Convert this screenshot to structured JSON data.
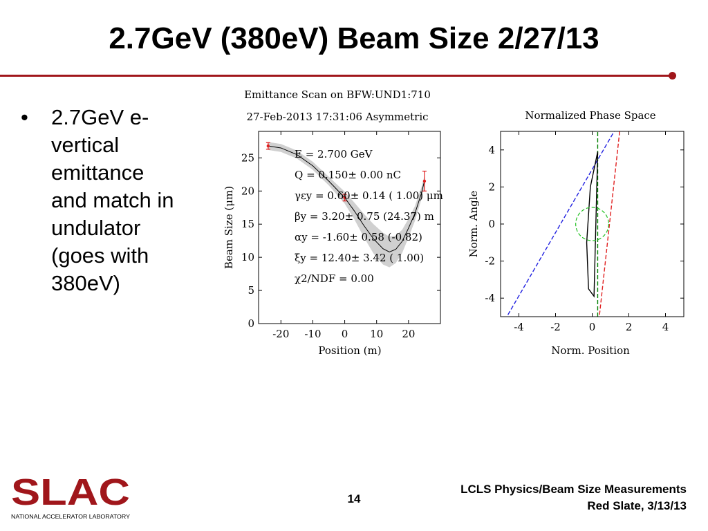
{
  "slide": {
    "title": "2.7GeV (380eV) Beam Size 2/27/13",
    "bullet_marker": "•",
    "bullet": "2.7GeV e-\nvertical\nemittance\nand match in\nundulator\n(goes with\n380eV)",
    "page_number": "14",
    "footer_line1": "LCLS Physics/Beam Size Measurements",
    "footer_line2": "Red Slate, 3/13/13",
    "logo_text": "SLAC",
    "logo_subtitle": "NATIONAL ACCELERATOR LABORATORY",
    "accent_color": "#a0161b"
  },
  "chart_data": [
    {
      "type": "line",
      "title": "Emittance Scan on BFW:UND1:710",
      "subtitle": "27-Feb-2013 17:31:06 Asymmetric",
      "xlabel": "Position (m)",
      "ylabel": "Beam Size (μm)",
      "xlim": [
        -27,
        30
      ],
      "ylim": [
        0,
        29
      ],
      "xticks": [
        "-20",
        "-10",
        "0",
        "10",
        "20"
      ],
      "yticks": [
        "0",
        "5",
        "10",
        "15",
        "20",
        "25"
      ],
      "grid": false,
      "measured": {
        "x": [
          -24,
          0,
          25
        ],
        "y": [
          26.8,
          19.0,
          21.5
        ],
        "err": [
          0.5,
          0.5,
          1.5
        ],
        "color": "#e02020"
      },
      "fit": {
        "x": [
          -24,
          -20,
          -15,
          -10,
          -5,
          0,
          3,
          6,
          9,
          12,
          14,
          16,
          18,
          20,
          22,
          24,
          25
        ],
        "y": [
          26.8,
          26.5,
          25.5,
          23.8,
          21.5,
          19.0,
          17.0,
          14.8,
          12.8,
          11.3,
          10.8,
          11.2,
          12.4,
          14.4,
          16.6,
          19.6,
          21.5
        ]
      },
      "annotations": [
        "E = 2.700 GeV",
        "Q = 0.150± 0.00 nC",
        "γεy = 0.60± 0.14 ( 1.00) μm",
        "βy = 3.20± 0.75 (24.37) m",
        "αy = -1.60± 0.58 (-0.82)",
        "ξy = 12.40± 3.42 ( 1.00)",
        "χ2/NDF = 0.00"
      ]
    },
    {
      "type": "line",
      "title": "Normalized Phase Space",
      "xlabel": "Norm. Position",
      "ylabel": "Norm. Angle",
      "xlim": [
        -5,
        5
      ],
      "ylim": [
        -5,
        5
      ],
      "xticks": [
        "-4",
        "-2",
        "0",
        "2",
        "4"
      ],
      "yticks": [
        "-4",
        "-2",
        "0",
        "2",
        "4"
      ],
      "grid": false,
      "series": [
        {
          "color": "#2020e0",
          "x": [
            -4.6,
            1.2
          ],
          "y": [
            -4.9,
            5.0
          ]
        },
        {
          "color": "#e02020",
          "x": [
            0.4,
            1.5
          ],
          "y": [
            -4.9,
            5.0
          ]
        },
        {
          "color": "#008000",
          "x": [
            0.3,
            0.3
          ],
          "y": [
            -5.0,
            5.0
          ]
        },
        {
          "color": "#000000",
          "x": [
            0.3,
            -0.1,
            -0.3,
            -0.2,
            0.1,
            0.3
          ],
          "y": [
            3.9,
            2.0,
            -1.0,
            -3.5,
            -3.9,
            3.9
          ]
        }
      ],
      "circle": {
        "color": "#20c020",
        "cx": 0,
        "cy": 0,
        "r": 0.9
      }
    }
  ]
}
